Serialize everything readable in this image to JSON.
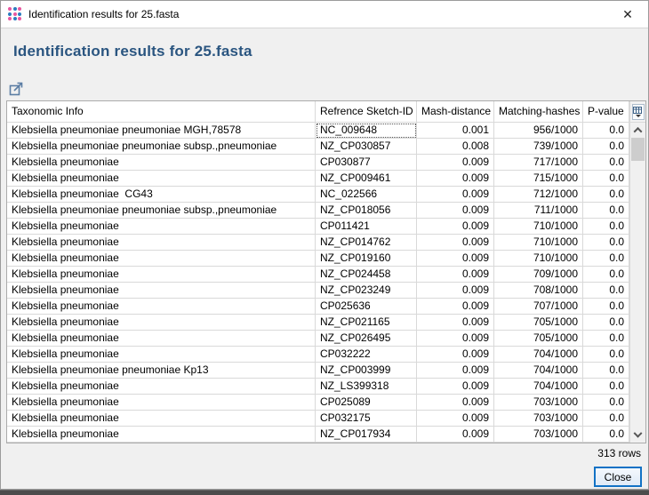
{
  "window": {
    "title": "Identification results for 25.fasta"
  },
  "heading": "Identification results for 25.fasta",
  "icons": {
    "app_icon": "dots-grid",
    "close_glyph": "✕",
    "export": "export-arrow",
    "column_picker": "table-columns-picker",
    "scroll_up": "chevron-up",
    "scroll_down": "chevron-down"
  },
  "colors": {
    "heading_blue": "#2a5580",
    "app_dot_blue": "#2b7bbf",
    "app_dot_pink": "#e8569f",
    "default_button_border": "#1272c5",
    "export_icon_blue": "#5b7da4"
  },
  "table": {
    "columns": [
      "Taxonomic Info",
      "Refrence Sketch-ID",
      "Mash-distance",
      "Matching-hashes",
      "P-value"
    ],
    "rows": [
      [
        "Klebsiella pneumoniae pneumoniae MGH,78578",
        "NC_009648",
        "0.001",
        "956/1000",
        "0.0"
      ],
      [
        "Klebsiella pneumoniae pneumoniae subsp.,pneumoniae",
        "NZ_CP030857",
        "0.008",
        "739/1000",
        "0.0"
      ],
      [
        "Klebsiella pneumoniae",
        "CP030877",
        "0.009",
        "717/1000",
        "0.0"
      ],
      [
        "Klebsiella pneumoniae",
        "NZ_CP009461",
        "0.009",
        "715/1000",
        "0.0"
      ],
      [
        "Klebsiella pneumoniae  CG43",
        "NC_022566",
        "0.009",
        "712/1000",
        "0.0"
      ],
      [
        "Klebsiella pneumoniae pneumoniae subsp.,pneumoniae",
        "NZ_CP018056",
        "0.009",
        "711/1000",
        "0.0"
      ],
      [
        "Klebsiella pneumoniae",
        "CP011421",
        "0.009",
        "710/1000",
        "0.0"
      ],
      [
        "Klebsiella pneumoniae",
        "NZ_CP014762",
        "0.009",
        "710/1000",
        "0.0"
      ],
      [
        "Klebsiella pneumoniae",
        "NZ_CP019160",
        "0.009",
        "710/1000",
        "0.0"
      ],
      [
        "Klebsiella pneumoniae",
        "NZ_CP024458",
        "0.009",
        "709/1000",
        "0.0"
      ],
      [
        "Klebsiella pneumoniae",
        "NZ_CP023249",
        "0.009",
        "708/1000",
        "0.0"
      ],
      [
        "Klebsiella pneumoniae",
        "CP025636",
        "0.009",
        "707/1000",
        "0.0"
      ],
      [
        "Klebsiella pneumoniae",
        "NZ_CP021165",
        "0.009",
        "705/1000",
        "0.0"
      ],
      [
        "Klebsiella pneumoniae",
        "NZ_CP026495",
        "0.009",
        "705/1000",
        "0.0"
      ],
      [
        "Klebsiella pneumoniae",
        "CP032222",
        "0.009",
        "704/1000",
        "0.0"
      ],
      [
        "Klebsiella pneumoniae pneumoniae Kp13",
        "NZ_CP003999",
        "0.009",
        "704/1000",
        "0.0"
      ],
      [
        "Klebsiella pneumoniae",
        "NZ_LS399318",
        "0.009",
        "704/1000",
        "0.0"
      ],
      [
        "Klebsiella pneumoniae",
        "CP025089",
        "0.009",
        "703/1000",
        "0.0"
      ],
      [
        "Klebsiella pneumoniae",
        "CP032175",
        "0.009",
        "703/1000",
        "0.0"
      ],
      [
        "Klebsiella pneumoniae",
        "NZ_CP017934",
        "0.009",
        "703/1000",
        "0.0"
      ]
    ],
    "focused_cell": {
      "row": 0,
      "col": 1
    }
  },
  "footer": {
    "row_count": "313 rows",
    "close_label": "Close"
  }
}
